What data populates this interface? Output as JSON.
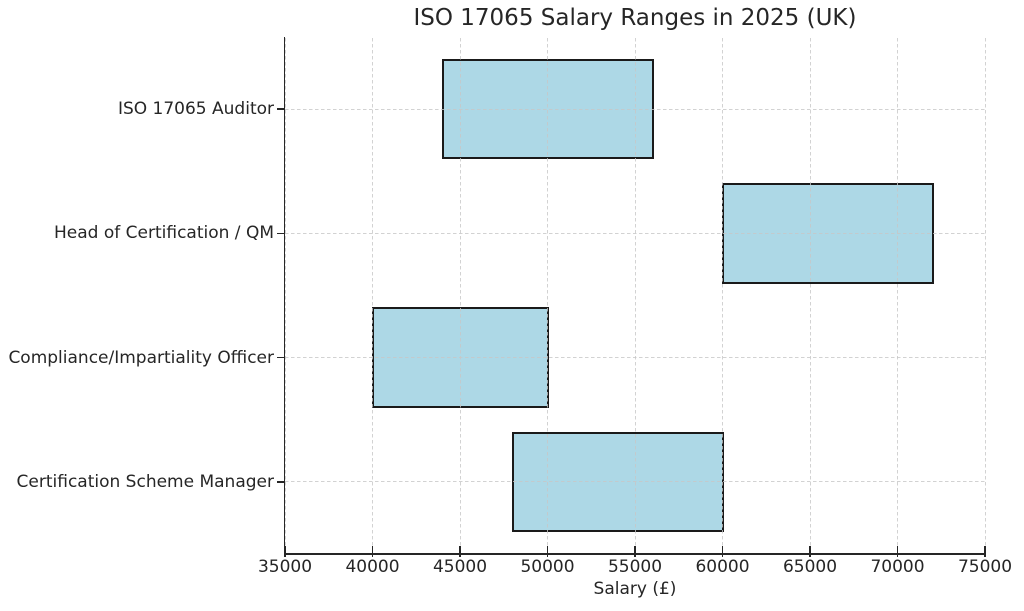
{
  "chart_data": {
    "type": "bar",
    "subtype": "horizontal-range-bar",
    "title": "ISO 17065 Salary Ranges in 2025 (UK)",
    "xlabel": "Salary (£)",
    "ylabel": "",
    "categories": [
      "ISO 17065 Auditor",
      "Head of Certification / QM",
      "Compliance/Impartiality Officer",
      "Certification Scheme Manager"
    ],
    "series": [
      {
        "name": "salary-range",
        "low": [
          44000,
          60000,
          40000,
          48000
        ],
        "high": [
          56000,
          72000,
          50000,
          60000
        ]
      }
    ],
    "xlim": [
      35000,
      75000
    ],
    "xticks": [
      35000,
      40000,
      45000,
      50000,
      55000,
      60000,
      65000,
      70000,
      75000
    ],
    "grid": true,
    "legend": false,
    "colors": {
      "bar_fill": "#ADD8E6",
      "bar_edge": "#1a1a1a",
      "grid": "#c7c7c7",
      "axis": "#262626",
      "text": "#262626",
      "background": "#ffffff"
    }
  }
}
